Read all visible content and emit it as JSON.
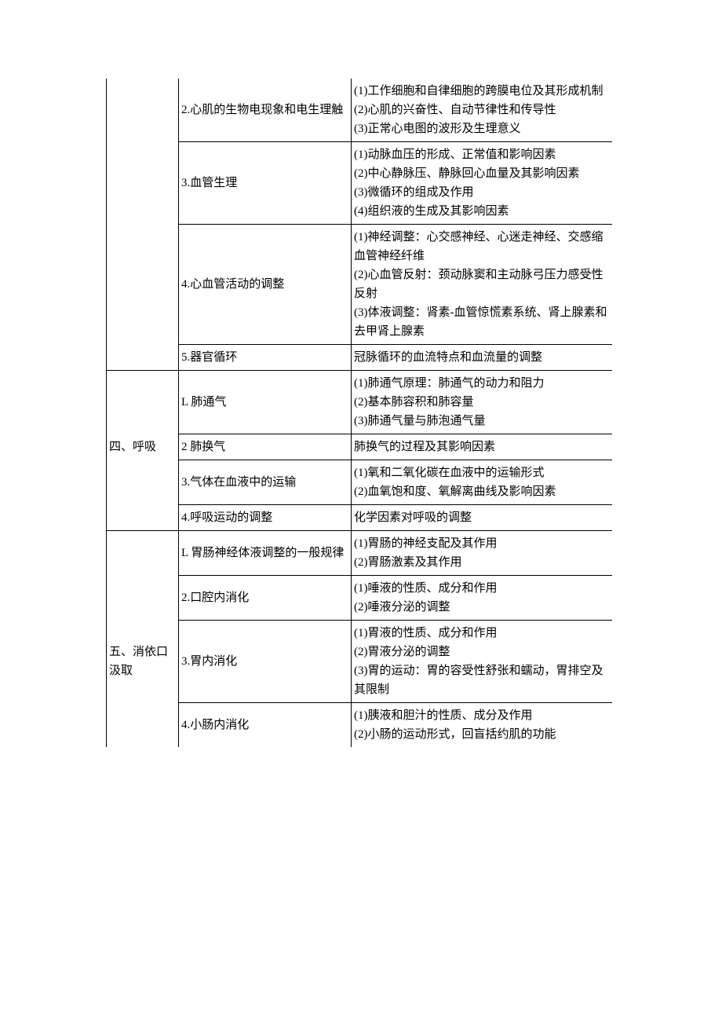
{
  "sections": {
    "s3": {
      "r2": {
        "t": "2.心肌的生物电现象和电生理触",
        "d": "(1)工作细胞和自律细胞的跨膜电位及其形成机制\n(2)心肌的兴奋性、自动节律性和传导性\n(3)正常心电图的波形及生理意义"
      },
      "r3": {
        "t": "3.血管生理",
        "d": "(1)动脉血压的形成、正常值和影响因素\n(2)中心静脉压、静脉回心血量及其影响因素\n(3)微循环的组成及作用\n(4)组织液的生成及其影响因素"
      },
      "r4": {
        "t": "4.心血管活动的调整",
        "d": "(1)神经调整：心交感神经、心迷走神经、交感缩血管神经纤维\n(2)心血管反射：颈动脉窦和主动脉弓压力感受性反射\n(3)体液调整：肾素-血管惊慌素系统、肾上腺素和去甲肾上腺素"
      },
      "r5": {
        "t": "5.器官循环",
        "d": "冠脉循环的血流特点和血流量的调整"
      }
    },
    "s4": {
      "title": "四、呼吸",
      "r1": {
        "t": "L 肺通气",
        "d": "(1)肺通气原理：肺通气的动力和阻力\n(2)基本肺容积和肺容量\n(3)肺通气量与肺泡通气量"
      },
      "r2": {
        "t": "2 肺换气",
        "d": "肺换气的过程及其影响因素"
      },
      "r3": {
        "t": "3.气体在血液中的运输",
        "d": "(1)氧和二氧化碳在血液中的运输形式\n(2)血氧饱和度、氧解离曲线及影响因素"
      },
      "r4": {
        "t": "4.呼吸运动的调整",
        "d": "化学因素对呼吸的调整"
      }
    },
    "s5": {
      "title": "五、消依口汲取",
      "r1": {
        "t": "L 胃肠神经体液调整的一般规律",
        "d": "(1)胃肠的神经支配及其作用\n(2)胃肠激素及其作用"
      },
      "r2": {
        "t": "2.口腔内消化",
        "d": "(1)唾液的性质、成分和作用\n(2)唾液分泌的调整"
      },
      "r3": {
        "t": "3.胃内消化",
        "d": "(1)胃液的性质、成分和作用\n(2)胃液分泌的调整\n(3)胃的运动：胃的容受性舒张和蠕动，胃排空及其限制"
      },
      "r4": {
        "t": "4.小肠内消化",
        "d": "(1)胰液和胆汁的性质、成分及作用\n(2)小肠的运动形式，回盲括约肌的功能"
      }
    }
  }
}
